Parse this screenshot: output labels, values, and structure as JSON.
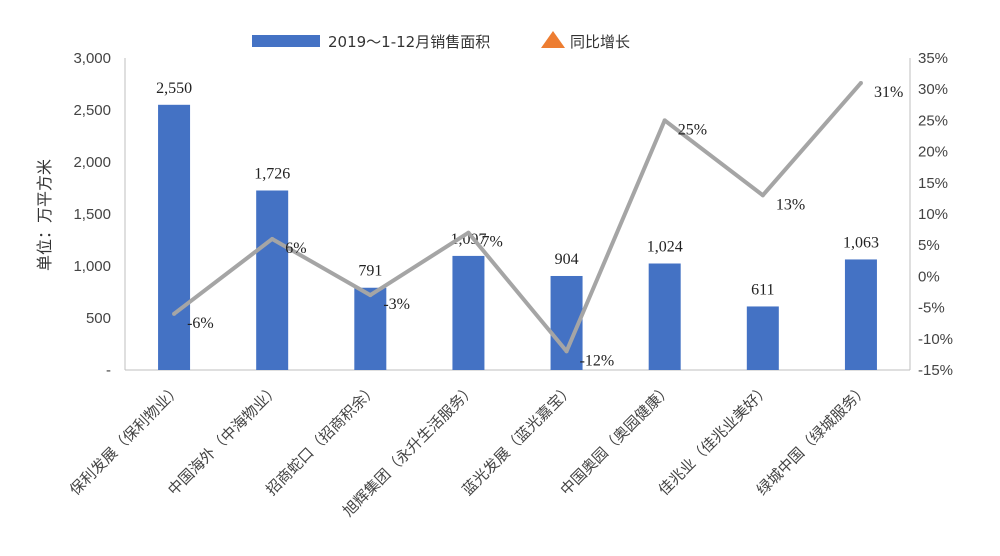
{
  "chart_data": {
    "type": "bar",
    "categories": [
      "保利发展（保利物业）",
      "中国海外（中海物业）",
      "招商蛇口（招商积余）",
      "旭辉集团（永升生活服务）",
      "蓝光发展（蓝光嘉宝）",
      "中国奥园（奥园健康）",
      "佳兆业（佳兆业美好）",
      "绿城中国（绿城服务）"
    ],
    "series": [
      {
        "name": "2019～1-12月销售面积",
        "kind": "bar",
        "axis": "left",
        "color": "#4472C4",
        "values": [
          2550,
          1726,
          791,
          1097,
          904,
          1024,
          611,
          1063
        ],
        "labels": [
          "2,550",
          "1,726",
          "791",
          "1,097",
          "904",
          "1,024",
          "611",
          "1,063"
        ]
      },
      {
        "name": "同比增长",
        "kind": "line",
        "axis": "right",
        "color": "#A5A5A5",
        "marker_color": "#ED7D31",
        "values": [
          -6,
          6,
          -3,
          7,
          -12,
          25,
          13,
          31
        ],
        "labels": [
          "-6%",
          "6%",
          "-3%",
          "7%",
          "-12%",
          "25%",
          "13%",
          "31%"
        ]
      }
    ],
    "y_left": {
      "label": "单位：万平方米",
      "ylim": [
        0,
        3000
      ],
      "ticks": [
        0,
        500,
        1000,
        1500,
        2000,
        2500,
        3000
      ],
      "tick_labels": [
        "-",
        "500",
        "1,000",
        "1,500",
        "2,000",
        "2,500",
        "3,000"
      ]
    },
    "y_right": {
      "ylim": [
        -15,
        35
      ],
      "ticks": [
        -15,
        -10,
        -5,
        0,
        5,
        10,
        15,
        20,
        25,
        30,
        35
      ],
      "tick_labels": [
        "-15%",
        "-10%",
        "-5%",
        "0%",
        "5%",
        "10%",
        "15%",
        "20%",
        "25%",
        "30%",
        "35%"
      ]
    },
    "legend": {
      "position": "top"
    },
    "grid": false
  }
}
